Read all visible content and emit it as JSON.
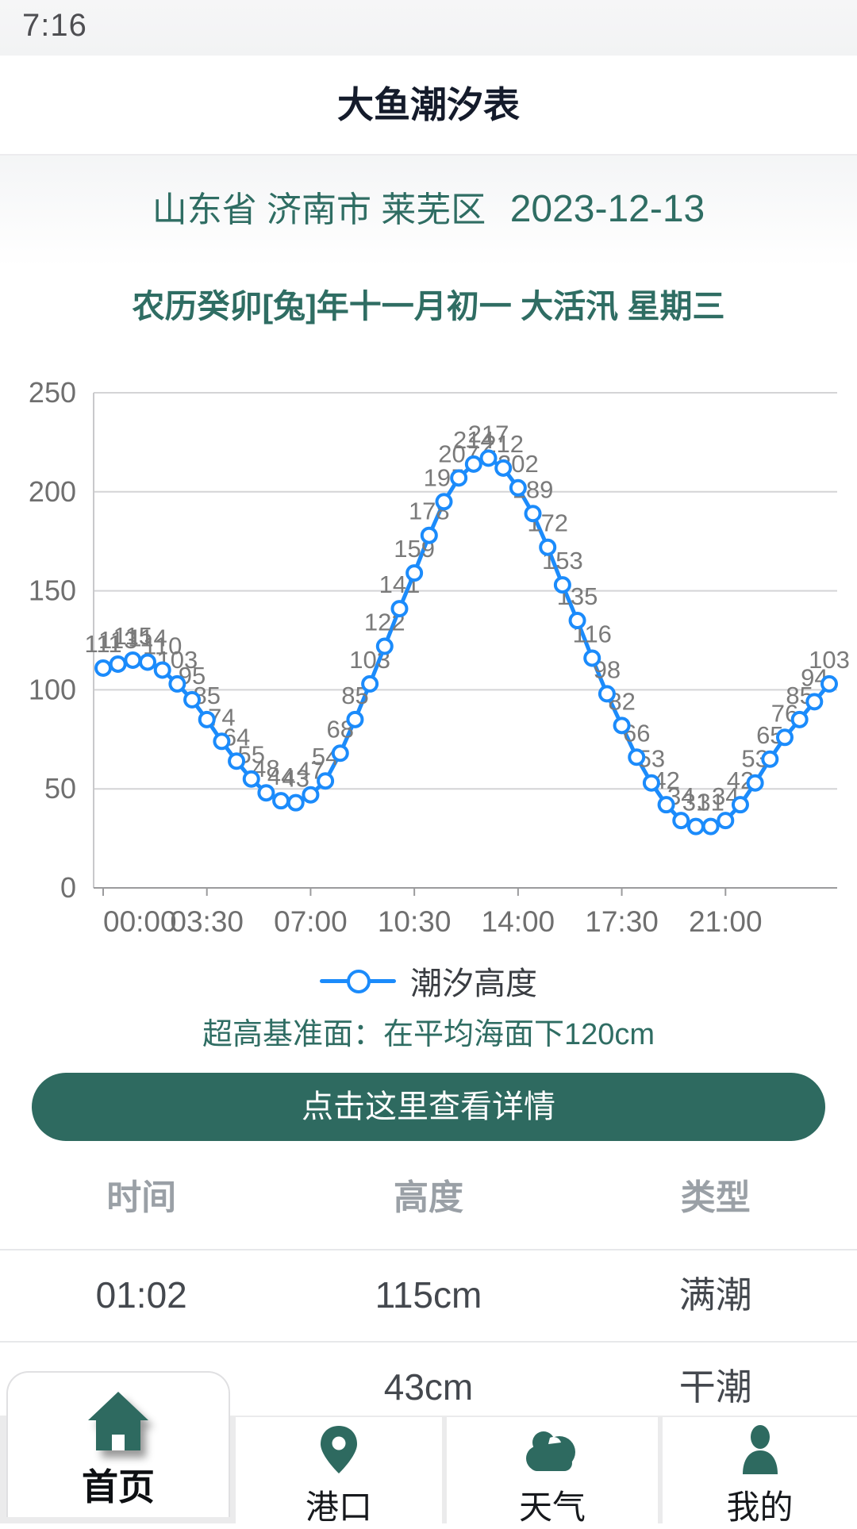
{
  "status_bar": {
    "time": "7:16"
  },
  "header": {
    "title": "大鱼潮汐表"
  },
  "location": {
    "region": "山东省 济南市 莱芜区",
    "date": "2023-12-13"
  },
  "lunar_line": "农历癸卯[兔]年十一月初一  大活汛  星期三",
  "chart_data": {
    "type": "line",
    "title": "",
    "series": [
      {
        "name": "潮汐高度",
        "values": [
          111,
          113,
          115,
          114,
          110,
          103,
          95,
          85,
          74,
          64,
          55,
          48,
          44,
          43,
          47,
          54,
          68,
          85,
          103,
          122,
          141,
          159,
          178,
          195,
          207,
          214,
          217,
          212,
          202,
          189,
          172,
          153,
          135,
          116,
          98,
          82,
          66,
          53,
          42,
          34,
          31,
          31,
          34,
          42,
          53,
          65,
          76,
          85,
          94,
          103
        ]
      }
    ],
    "x_start": "00:00",
    "x_interval_minutes": 30,
    "x_tick_labels": [
      "00:00",
      "03:30",
      "07:00",
      "10:30",
      "14:00",
      "17:30",
      "21:00"
    ],
    "x_tick_indices": [
      0,
      7,
      14,
      21,
      28,
      35,
      42
    ],
    "y_ticks": [
      0,
      50,
      100,
      150,
      200,
      250
    ],
    "ylim": [
      0,
      250
    ],
    "grid": true,
    "point_labels": true,
    "legend_position": "bottom",
    "line_color": "#1b8bfb",
    "marker": "open-circle",
    "label_color": "#7a7a7a",
    "axis_color": "#6f6f6f"
  },
  "legend": {
    "label": "潮汐高度"
  },
  "datum_note": "超高基准面：在平均海面下120cm",
  "detail_button": {
    "label": "点击这里查看详情"
  },
  "tide_table": {
    "headers": [
      "时间",
      "高度",
      "类型"
    ],
    "rows": [
      {
        "time": "01:02",
        "height": "115cm",
        "type": "满潮"
      },
      {
        "time": "",
        "height": "43cm",
        "type": "干潮"
      }
    ]
  },
  "bottom_nav": {
    "items": [
      {
        "label": "首页",
        "icon": "home-icon",
        "active": true
      },
      {
        "label": "港口",
        "icon": "location-pin-icon",
        "active": false
      },
      {
        "label": "天气",
        "icon": "cloud-icon",
        "active": false
      },
      {
        "label": "我的",
        "icon": "person-icon",
        "active": false
      }
    ]
  },
  "colors": {
    "accent_teal": "#2e6a60",
    "text_teal": "#2f6d63",
    "line_blue": "#1b8bfb",
    "title_dark": "#141b2b",
    "gray_text": "#9aa0a6"
  }
}
